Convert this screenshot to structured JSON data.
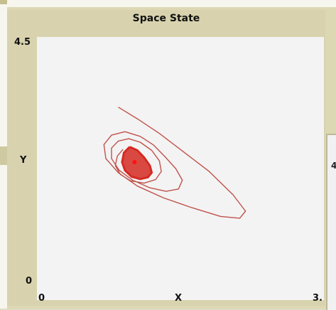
{
  "plot": {
    "title": "Space State",
    "x_axis_label": "X",
    "y_axis_label": "Y",
    "x_min_label": "0",
    "x_max_label": "3.",
    "y_min_label": "0",
    "y_max_label": "4.5"
  },
  "side_widget": {
    "partial_label": "4"
  },
  "colors": {
    "trajectory": "#c0524c",
    "attractor": "#d42a22",
    "point": "#ff1111",
    "plot_background": "#f3f3f3",
    "widget_background": "#d8d3ae"
  },
  "chart_data": {
    "type": "line",
    "title": "Space State",
    "xlabel": "X",
    "ylabel": "Y",
    "xlim": [
      0,
      3
    ],
    "ylim": [
      0,
      4.5
    ],
    "legend": "none",
    "grid": false,
    "series": [
      {
        "x": [
          0.85,
          1.05,
          1.28,
          1.52,
          1.8,
          2.05,
          2.18,
          2.12,
          1.92,
          1.62,
          1.32,
          1.05,
          0.85,
          0.72,
          0.7,
          0.78,
          0.92,
          1.08,
          1.22,
          1.34,
          1.45,
          1.52,
          1.48,
          1.35,
          1.18,
          1.0,
          0.86,
          0.78,
          0.78,
          0.85,
          0.96,
          1.08,
          1.2,
          1.28,
          1.3,
          1.24,
          1.12,
          0.98,
          0.87,
          0.82,
          0.84,
          0.9
        ],
        "y": [
          3.3,
          3.1,
          2.85,
          2.55,
          2.2,
          1.8,
          1.52,
          1.4,
          1.43,
          1.58,
          1.75,
          1.95,
          2.18,
          2.42,
          2.66,
          2.82,
          2.88,
          2.8,
          2.65,
          2.45,
          2.25,
          2.05,
          1.9,
          1.86,
          1.92,
          2.05,
          2.22,
          2.42,
          2.6,
          2.72,
          2.76,
          2.7,
          2.56,
          2.38,
          2.2,
          2.06,
          2.0,
          2.04,
          2.15,
          2.3,
          2.46,
          2.58
        ]
      },
      {
        "x": [
          0.97,
          1.05,
          1.12,
          1.18,
          1.2,
          1.16,
          1.08,
          0.99,
          0.92,
          0.89,
          0.91,
          0.97
        ],
        "y": [
          2.62,
          2.56,
          2.44,
          2.3,
          2.18,
          2.1,
          2.07,
          2.11,
          2.22,
          2.36,
          2.52,
          2.62
        ]
      }
    ],
    "points": [
      {
        "x": 1.02,
        "y": 2.36
      }
    ]
  }
}
